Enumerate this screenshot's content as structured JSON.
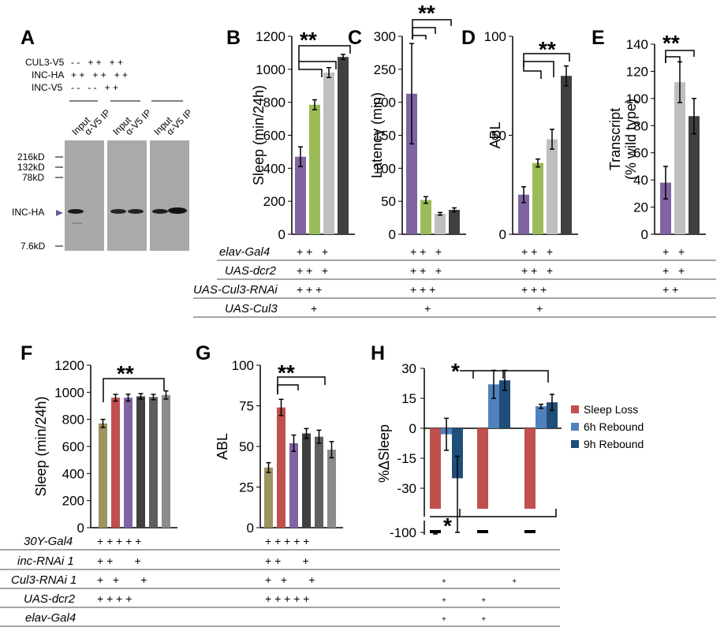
{
  "panels": {
    "A": {
      "label": "A",
      "rows": [
        {
          "name": "CUL3-V5",
          "marks": "- -   + +   + +"
        },
        {
          "name": "INC-HA",
          "marks": "+ +   + +   + +"
        },
        {
          "name": "INC-V5",
          "marks": "- -   - -   + +"
        }
      ],
      "lanes": [
        "Input",
        "α-V5 IP",
        "Input",
        "α-V5 IP",
        "Input",
        "α-V5 IP"
      ],
      "markers": [
        "216kD",
        "132kD",
        "78kD",
        "7.6kD"
      ],
      "band_label": "INC-HA"
    },
    "B": {
      "label": "B",
      "stars": "**"
    },
    "C": {
      "label": "C",
      "stars": "**"
    },
    "D": {
      "label": "D",
      "stars": "**"
    },
    "E": {
      "label": "E",
      "stars": "**"
    },
    "F": {
      "label": "F",
      "stars": "**"
    },
    "G": {
      "label": "G",
      "stars": "**"
    },
    "H": {
      "label": "H",
      "stars_top": "*",
      "stars_bottom": "*"
    }
  },
  "genotype_table_top": {
    "rows": [
      {
        "name": "elav-Gal4",
        "B": "+ +   +",
        "C": "+ +   +",
        "D": "+ +   +",
        "E": "+   +"
      },
      {
        "name": "UAS-dcr2",
        "B": "+ +   +",
        "C": "+ +   +",
        "D": "+ +   +",
        "E": "+   +"
      },
      {
        "name": "UAS-Cul3-RNAi",
        "B": "+ + +",
        "C": "+ + +",
        "D": "+ + +",
        "E": "+ +"
      },
      {
        "name": "UAS-Cul3",
        "B": "+",
        "C": "+",
        "D": "+",
        "E": ""
      }
    ]
  },
  "genotype_table_bottom": {
    "rows": [
      {
        "name": "30Y-Gal4",
        "F": "+ + + + +",
        "G": "+ + + + +",
        "H": ""
      },
      {
        "name": "inc-RNAi 1",
        "F": "+ +       +",
        "G": "+ +       +",
        "H": ""
      },
      {
        "name": "Cul3-RNAi 1",
        "F": "+   +       +",
        "G": "+   +       +",
        "H": "+                              +"
      },
      {
        "name": "UAS-dcr2",
        "F": "+ + + +",
        "G": "+ + + + +",
        "H": "+                +"
      },
      {
        "name": "elav-Gal4",
        "F": "",
        "G": "",
        "H": "+                +"
      }
    ]
  },
  "chart_data": [
    {
      "panel": "B",
      "type": "bar",
      "ylabel": "Sleep (min/24h)",
      "ylim": [
        0,
        1200
      ],
      "yticks": [
        "0",
        "200",
        "400",
        "600",
        "800",
        "1000",
        "1200"
      ],
      "values": [
        470,
        785,
        980,
        1075
      ],
      "errors": [
        60,
        30,
        30,
        15
      ],
      "colors": [
        "#8064A2",
        "#9BBB59",
        "#BFBFBF",
        "#404040"
      ]
    },
    {
      "panel": "C",
      "type": "bar",
      "ylabel": "Latency (min)",
      "ylim": [
        0,
        300
      ],
      "yticks": [
        "0",
        "50",
        "100",
        "150",
        "200",
        "250",
        "300"
      ],
      "values": [
        213,
        52,
        31,
        37
      ],
      "errors": [
        76,
        5,
        2,
        3
      ],
      "colors": [
        "#8064A2",
        "#9BBB59",
        "#BFBFBF",
        "#404040"
      ]
    },
    {
      "panel": "D",
      "type": "bar",
      "ylabel": "ABL",
      "ylim": [
        0,
        100
      ],
      "yticks": [
        "0",
        "50",
        "100"
      ],
      "values": [
        20,
        36,
        48,
        80
      ],
      "errors": [
        4,
        2,
        5,
        5
      ],
      "colors": [
        "#8064A2",
        "#9BBB59",
        "#BFBFBF",
        "#404040"
      ]
    },
    {
      "panel": "E",
      "type": "bar",
      "ylabel": "Transcript",
      "ylabel2": "(% wild type)",
      "ylim": [
        0,
        140
      ],
      "yticks": [
        "0",
        "20",
        "40",
        "60",
        "80",
        "100",
        "120",
        "140"
      ],
      "values": [
        38,
        112,
        87
      ],
      "errors": [
        12,
        15,
        13
      ],
      "colors": [
        "#8064A2",
        "#BFBFBF",
        "#404040"
      ]
    },
    {
      "panel": "F",
      "type": "bar",
      "ylabel": "Sleep (min/24h)",
      "ylim": [
        0,
        1200
      ],
      "yticks": [
        "0",
        "200",
        "400",
        "600",
        "800",
        "1000",
        "1200"
      ],
      "values": [
        770,
        960,
        960,
        970,
        965,
        980
      ],
      "errors": [
        30,
        25,
        25,
        20,
        20,
        30
      ],
      "colors": [
        "#9C9461",
        "#C0504D",
        "#8064A2",
        "#404040",
        "#5F5F5F",
        "#8C8C8C"
      ]
    },
    {
      "panel": "G",
      "type": "bar",
      "ylabel": "ABL",
      "ylim": [
        0,
        100
      ],
      "yticks": [
        "0",
        "25",
        "50",
        "75",
        "100"
      ],
      "values": [
        37,
        74,
        52,
        58,
        56,
        48
      ],
      "errors": [
        3,
        5,
        5,
        3,
        4,
        5
      ],
      "colors": [
        "#9C9461",
        "#C0504D",
        "#8064A2",
        "#404040",
        "#5F5F5F",
        "#8C8C8C"
      ]
    },
    {
      "panel": "H",
      "type": "bar",
      "ylabel": "%ΔSleep",
      "yticks": [
        "30",
        "15",
        "0",
        "-15",
        "-30",
        "-100"
      ],
      "axis_break": true,
      "series": [
        {
          "name": "Sleep Loss",
          "color": "#C0504D",
          "values": [
            -100,
            -100,
            -100
          ],
          "errors": [
            1,
            0,
            0
          ]
        },
        {
          "name": "6h Rebound",
          "color": "#4F81BD",
          "values": [
            -3,
            22,
            11
          ],
          "errors": [
            8,
            7,
            1
          ]
        },
        {
          "name": "9h Rebound",
          "color": "#1F4E79",
          "values": [
            -25,
            24,
            13
          ],
          "errors": [
            11,
            5,
            4
          ]
        }
      ],
      "legend": "right"
    }
  ]
}
